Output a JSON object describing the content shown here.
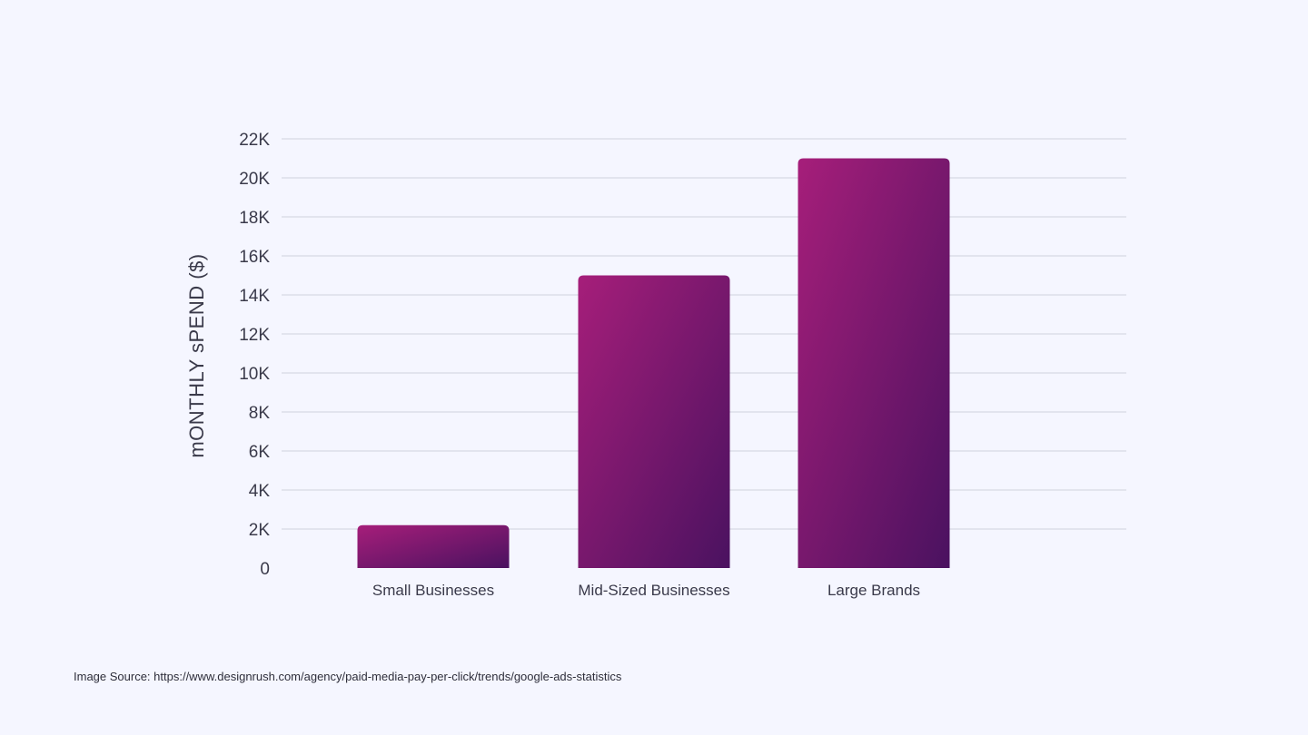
{
  "chart_data": {
    "type": "bar",
    "title": "",
    "xlabel": "",
    "ylabel": "mONTHLY sPEND ($)",
    "categories": [
      "Small Businesses",
      "Mid-Sized Businesses",
      "Large Brands"
    ],
    "values": [
      2200,
      15000,
      21000
    ],
    "ylim": [
      0,
      22000
    ],
    "yticks": [
      0,
      2000,
      4000,
      6000,
      8000,
      10000,
      12000,
      14000,
      16000,
      18000,
      20000,
      22000
    ],
    "ytick_labels": [
      "0",
      "2K",
      "4K",
      "6K",
      "8K",
      "10K",
      "12K",
      "14K",
      "16K",
      "18K",
      "20K",
      "22K"
    ],
    "grid": "horizontal",
    "legend": "none",
    "colors": {
      "bar_start": "#a61e7a",
      "bar_end": "#4a1260",
      "grid": "#dcdde8",
      "background": "#f5f6ff",
      "text": "#3a3a4a"
    }
  },
  "footer": {
    "source_text": "Image Source: https://www.designrush.com/agency/paid-media-pay-per-click/trends/google-ads-statistics"
  }
}
